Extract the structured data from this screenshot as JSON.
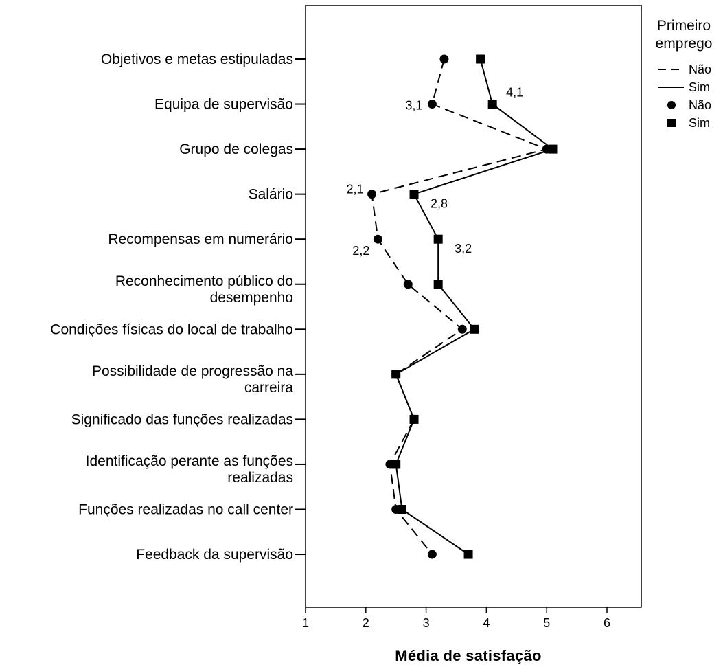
{
  "chart_data": {
    "type": "line",
    "orientation": "horizontal",
    "xlabel": "Média de satisfação",
    "xlim": [
      1,
      6
    ],
    "xticks": [
      "1",
      "2",
      "3",
      "4",
      "5",
      "6"
    ],
    "categories": [
      [
        "Objetivos e metas estipuladas"
      ],
      [
        "Equipa de supervisão"
      ],
      [
        "Grupo de colegas"
      ],
      [
        "Salário"
      ],
      [
        "Recompensas em numerário"
      ],
      [
        "Reconhecimento público do",
        "desempenho"
      ],
      [
        "Condições físicas do local de trabalho"
      ],
      [
        "Possibilidade de progressão na",
        "carreira"
      ],
      [
        "Significado das funções realizadas"
      ],
      [
        "Identificação perante as funções",
        "realizadas"
      ],
      [
        "Funções realizadas no call center"
      ],
      [
        "Feedback da supervisão"
      ]
    ],
    "series": [
      {
        "name": "Não",
        "line": "dashed",
        "marker": "circle",
        "values": [
          3.3,
          3.1,
          5.0,
          2.1,
          2.2,
          2.7,
          3.6,
          2.5,
          2.8,
          2.4,
          2.5,
          3.1
        ]
      },
      {
        "name": "Sim",
        "line": "solid",
        "marker": "square",
        "values": [
          3.9,
          4.1,
          5.1,
          2.8,
          3.2,
          3.2,
          3.8,
          2.5,
          2.8,
          2.5,
          2.6,
          3.7
        ]
      }
    ],
    "data_labels": [
      {
        "series": 0,
        "index": 1,
        "text": "3,1",
        "side": "left"
      },
      {
        "series": 1,
        "index": 1,
        "text": "4,1",
        "side": "upper-right"
      },
      {
        "series": 0,
        "index": 3,
        "text": "2,1",
        "side": "upper-left"
      },
      {
        "series": 1,
        "index": 3,
        "text": "2,8",
        "side": "lower-right"
      },
      {
        "series": 0,
        "index": 4,
        "text": "2,2",
        "side": "lower-left"
      },
      {
        "series": 1,
        "index": 4,
        "text": "3,2",
        "side": "lower-right"
      }
    ],
    "legend": {
      "position": "top-right",
      "title": [
        "Primeiro",
        "emprego"
      ],
      "entries": [
        {
          "label": "Não",
          "kind": "line-dashed"
        },
        {
          "label": "Sim",
          "kind": "line-solid"
        },
        {
          "label": "Não",
          "kind": "marker-circle"
        },
        {
          "label": "Sim",
          "kind": "marker-square"
        }
      ]
    },
    "grid": false
  }
}
